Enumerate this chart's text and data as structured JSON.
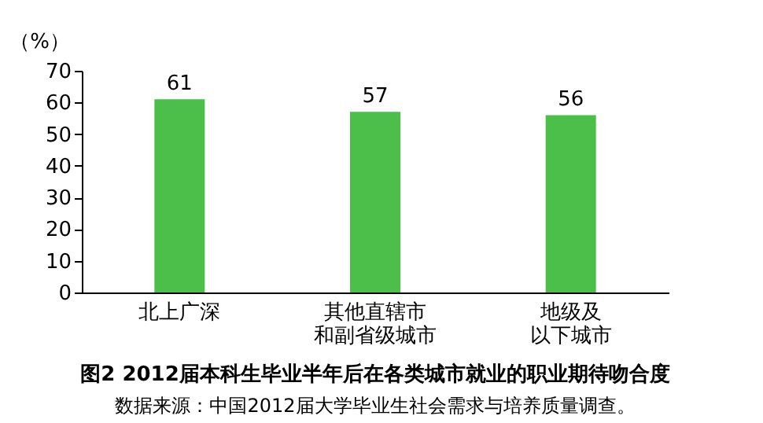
{
  "chart_data": {
    "type": "bar",
    "title": "图2  2012届本科生毕业半年后在各类城市就业的职业期待吻合度",
    "ylabel": "（%）",
    "categories": [
      "北上广深",
      "其他直辖市和副省级城市",
      "地级及以下城市"
    ],
    "values": [
      61,
      57,
      56
    ],
    "color": "#4cbf4a",
    "ylim": [
      0,
      70
    ],
    "yticks": [
      0,
      10,
      20,
      30,
      40,
      50,
      60,
      70
    ],
    "data_labels": true,
    "grid": false,
    "annotations": [
      "数据来源：中国2012届大学毕业生社会需求与培养质量调查。"
    ]
  }
}
